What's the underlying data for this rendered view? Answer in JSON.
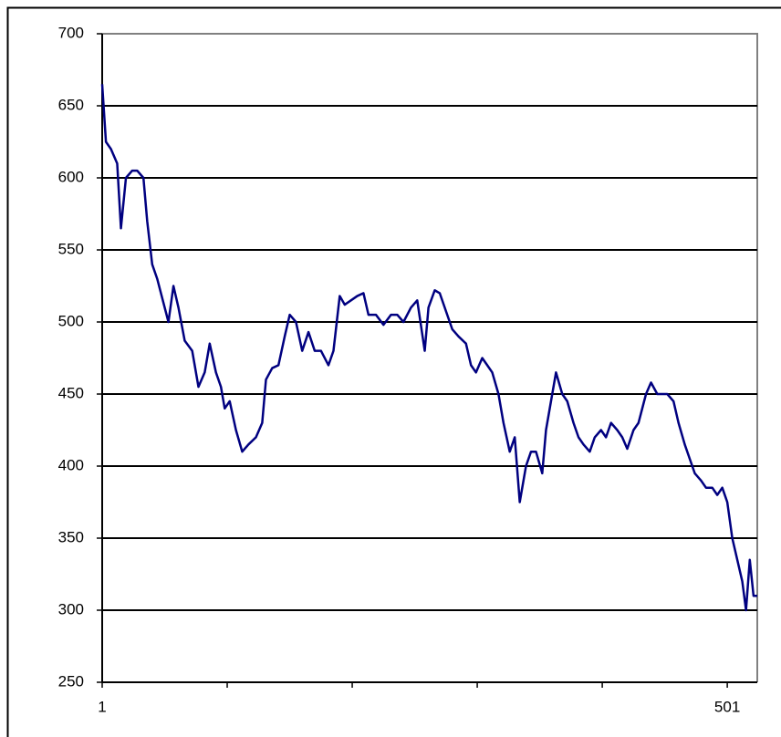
{
  "chart_data": {
    "type": "line",
    "x": [
      1,
      4,
      8,
      13,
      16,
      20,
      25,
      29,
      34,
      37,
      41,
      45,
      48,
      54,
      58,
      62,
      67,
      73,
      78,
      83,
      87,
      92,
      96,
      99,
      103,
      108,
      113,
      118,
      124,
      129,
      132,
      137,
      142,
      147,
      151,
      156,
      161,
      166,
      171,
      176,
      182,
      186,
      191,
      195,
      200,
      205,
      210,
      214,
      220,
      226,
      232,
      237,
      242,
      248,
      253,
      259,
      262,
      267,
      271,
      277,
      281,
      286,
      292,
      296,
      300,
      305,
      309,
      313,
      318,
      322,
      327,
      331,
      335,
      340,
      344,
      348,
      353,
      356,
      360,
      364,
      369,
      373,
      378,
      382,
      386,
      391,
      395,
      400,
      404,
      408,
      413,
      417,
      421,
      426,
      430,
      436,
      440,
      445,
      449,
      453,
      458,
      462,
      467,
      471,
      475,
      480,
      484,
      489,
      493,
      497,
      501,
      505,
      509,
      513,
      516,
      519,
      522,
      525
    ],
    "values": [
      665,
      625,
      620,
      610,
      565,
      600,
      605,
      605,
      600,
      570,
      540,
      530,
      520,
      500,
      525,
      510,
      487,
      480,
      455,
      465,
      485,
      465,
      455,
      440,
      445,
      425,
      410,
      415,
      420,
      430,
      460,
      468,
      470,
      490,
      505,
      500,
      480,
      493,
      480,
      480,
      470,
      480,
      518,
      512,
      515,
      518,
      520,
      505,
      505,
      498,
      505,
      505,
      500,
      510,
      515,
      480,
      510,
      522,
      520,
      505,
      495,
      490,
      485,
      470,
      465,
      475,
      470,
      465,
      450,
      430,
      410,
      420,
      375,
      400,
      410,
      410,
      395,
      425,
      445,
      465,
      450,
      445,
      430,
      420,
      415,
      410,
      420,
      425,
      420,
      430,
      425,
      420,
      412,
      425,
      430,
      450,
      458,
      450,
      450,
      450,
      445,
      430,
      415,
      405,
      395,
      390,
      385,
      385,
      380,
      385,
      375,
      350,
      335,
      320,
      300,
      335,
      310,
      310
    ],
    "color": "#000080",
    "xlim": [
      1,
      525
    ],
    "xticks": [
      1,
      501
    ],
    "xminor": [
      101,
      201,
      301,
      401
    ],
    "ylim": [
      250,
      700
    ],
    "yticks": [
      250,
      300,
      350,
      400,
      450,
      500,
      550,
      600,
      650,
      700
    ],
    "grid": true
  }
}
